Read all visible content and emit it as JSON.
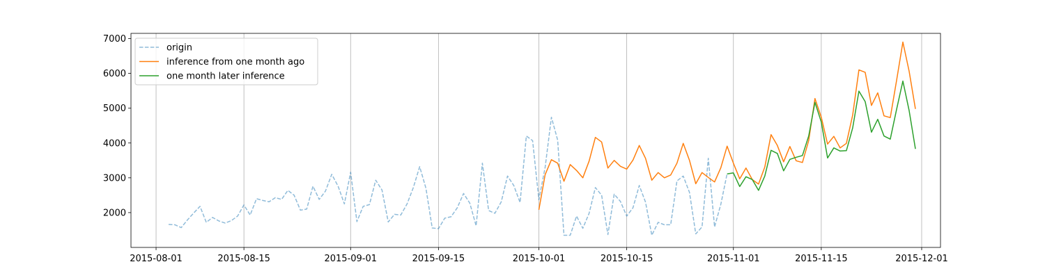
{
  "chart_data": {
    "type": "line",
    "title": "",
    "xlabel": "",
    "ylabel": "",
    "x_axis_type": "date",
    "xlim": [
      "2015-07-28",
      "2015-12-04"
    ],
    "ylim": [
      1000,
      7150
    ],
    "x_ticks": [
      "2015-08-01",
      "2015-08-15",
      "2015-09-01",
      "2015-09-15",
      "2015-10-01",
      "2015-10-15",
      "2015-11-01",
      "2015-11-15",
      "2015-12-01"
    ],
    "y_ticks": [
      2000,
      3000,
      4000,
      5000,
      6000,
      7000
    ],
    "grid": "vertical lines at x ticks",
    "legend_position": "upper-left",
    "series": [
      {
        "name": "origin",
        "color": "#1f77b4",
        "style": "dashed",
        "opacity": 0.5,
        "x": [
          "2015-08-03",
          "2015-08-04",
          "2015-08-05",
          "2015-08-06",
          "2015-08-07",
          "2015-08-08",
          "2015-08-09",
          "2015-08-10",
          "2015-08-11",
          "2015-08-12",
          "2015-08-13",
          "2015-08-14",
          "2015-08-15",
          "2015-08-16",
          "2015-08-17",
          "2015-08-18",
          "2015-08-19",
          "2015-08-20",
          "2015-08-21",
          "2015-08-22",
          "2015-08-23",
          "2015-08-24",
          "2015-08-25",
          "2015-08-26",
          "2015-08-27",
          "2015-08-28",
          "2015-08-29",
          "2015-08-30",
          "2015-08-31",
          "2015-09-01",
          "2015-09-02",
          "2015-09-03",
          "2015-09-04",
          "2015-09-05",
          "2015-09-06",
          "2015-09-07",
          "2015-09-08",
          "2015-09-09",
          "2015-09-10",
          "2015-09-11",
          "2015-09-12",
          "2015-09-13",
          "2015-09-14",
          "2015-09-15",
          "2015-09-16",
          "2015-09-17",
          "2015-09-18",
          "2015-09-19",
          "2015-09-20",
          "2015-09-21",
          "2015-09-22",
          "2015-09-23",
          "2015-09-24",
          "2015-09-25",
          "2015-09-26",
          "2015-09-27",
          "2015-09-28",
          "2015-09-29",
          "2015-09-30",
          "2015-10-01",
          "2015-10-02",
          "2015-10-03",
          "2015-10-04",
          "2015-10-05",
          "2015-10-06",
          "2015-10-07",
          "2015-10-08",
          "2015-10-09",
          "2015-10-10",
          "2015-10-11",
          "2015-10-12",
          "2015-10-13",
          "2015-10-14",
          "2015-10-15",
          "2015-10-16",
          "2015-10-17",
          "2015-10-18",
          "2015-10-19",
          "2015-10-20",
          "2015-10-21",
          "2015-10-22",
          "2015-10-23",
          "2015-10-24",
          "2015-10-25",
          "2015-10-26",
          "2015-10-27",
          "2015-10-28",
          "2015-10-29",
          "2015-10-30",
          "2015-10-31"
        ],
        "y": [
          1660,
          1650,
          1570,
          1790,
          1990,
          2180,
          1720,
          1860,
          1760,
          1700,
          1770,
          1900,
          2220,
          1930,
          2400,
          2350,
          2310,
          2430,
          2380,
          2640,
          2500,
          2070,
          2100,
          2760,
          2380,
          2620,
          3100,
          2760,
          2250,
          3160,
          1740,
          2180,
          2230,
          2930,
          2650,
          1730,
          1950,
          1930,
          2250,
          2720,
          3320,
          2700,
          1560,
          1540,
          1840,
          1880,
          2140,
          2550,
          2270,
          1620,
          3420,
          2060,
          1980,
          2310,
          3050,
          2780,
          2290,
          4200,
          4070,
          2370,
          3300,
          4740,
          4080,
          1350,
          1350,
          1900,
          1550,
          1980,
          2720,
          2500,
          1370,
          2530,
          2320,
          1900,
          2140,
          2780,
          2300,
          1350,
          1720,
          1650,
          1650,
          2910,
          3050,
          2580,
          1390,
          1590,
          3560,
          1590,
          2240,
          3120
        ]
      },
      {
        "name": "inference from one month ago",
        "color": "#ff7f0e",
        "style": "solid",
        "x": [
          "2015-10-01",
          "2015-10-02",
          "2015-10-03",
          "2015-10-04",
          "2015-10-05",
          "2015-10-06",
          "2015-10-07",
          "2015-10-08",
          "2015-10-09",
          "2015-10-10",
          "2015-10-11",
          "2015-10-12",
          "2015-10-13",
          "2015-10-14",
          "2015-10-15",
          "2015-10-16",
          "2015-10-17",
          "2015-10-18",
          "2015-10-19",
          "2015-10-20",
          "2015-10-21",
          "2015-10-22",
          "2015-10-23",
          "2015-10-24",
          "2015-10-25",
          "2015-10-26",
          "2015-10-27",
          "2015-10-28",
          "2015-10-29",
          "2015-10-30",
          "2015-10-31",
          "2015-11-01",
          "2015-11-02",
          "2015-11-03",
          "2015-11-04",
          "2015-11-05",
          "2015-11-06",
          "2015-11-07",
          "2015-11-08",
          "2015-11-09",
          "2015-11-10",
          "2015-11-11",
          "2015-11-12",
          "2015-11-13",
          "2015-11-14",
          "2015-11-15",
          "2015-11-16",
          "2015-11-17",
          "2015-11-18",
          "2015-11-19",
          "2015-11-20",
          "2015-11-21",
          "2015-11-22",
          "2015-11-23",
          "2015-11-24",
          "2015-11-25",
          "2015-11-26",
          "2015-11-27",
          "2015-11-28",
          "2015-11-29",
          "2015-11-30"
        ],
        "y": [
          2080,
          3090,
          3520,
          3420,
          2900,
          3380,
          3210,
          3000,
          3480,
          4160,
          4030,
          3280,
          3500,
          3330,
          3250,
          3510,
          3930,
          3560,
          2930,
          3150,
          3000,
          3080,
          3420,
          3990,
          3500,
          2830,
          3150,
          3010,
          2880,
          3290,
          3910,
          3420,
          2970,
          3280,
          2950,
          2820,
          3310,
          4240,
          3930,
          3460,
          3900,
          3490,
          3440,
          4070,
          5280,
          4740,
          3970,
          4190,
          3860,
          3990,
          4800,
          6100,
          6030,
          5080,
          5440,
          4780,
          4730,
          5790,
          6900,
          6060,
          4980
        ]
      },
      {
        "name": "one month later inference",
        "color": "#2ca02c",
        "style": "solid",
        "x": [
          "2015-10-31",
          "2015-11-01",
          "2015-11-02",
          "2015-11-03",
          "2015-11-04",
          "2015-11-05",
          "2015-11-06",
          "2015-11-07",
          "2015-11-08",
          "2015-11-09",
          "2015-11-10",
          "2015-11-11",
          "2015-11-12",
          "2015-11-13",
          "2015-11-14",
          "2015-11-15",
          "2015-11-16",
          "2015-11-17",
          "2015-11-18",
          "2015-11-19",
          "2015-11-20",
          "2015-11-21",
          "2015-11-22",
          "2015-11-23",
          "2015-11-24",
          "2015-11-25",
          "2015-11-26",
          "2015-11-27",
          "2015-11-28",
          "2015-11-29",
          "2015-11-30"
        ],
        "y": [
          3110,
          3140,
          2750,
          3030,
          2950,
          2640,
          3050,
          3790,
          3700,
          3200,
          3530,
          3590,
          3640,
          4200,
          5170,
          4600,
          3570,
          3860,
          3770,
          3780,
          4430,
          5490,
          5190,
          4310,
          4680,
          4200,
          4110,
          4960,
          5780,
          4930,
          3830
        ]
      }
    ]
  }
}
